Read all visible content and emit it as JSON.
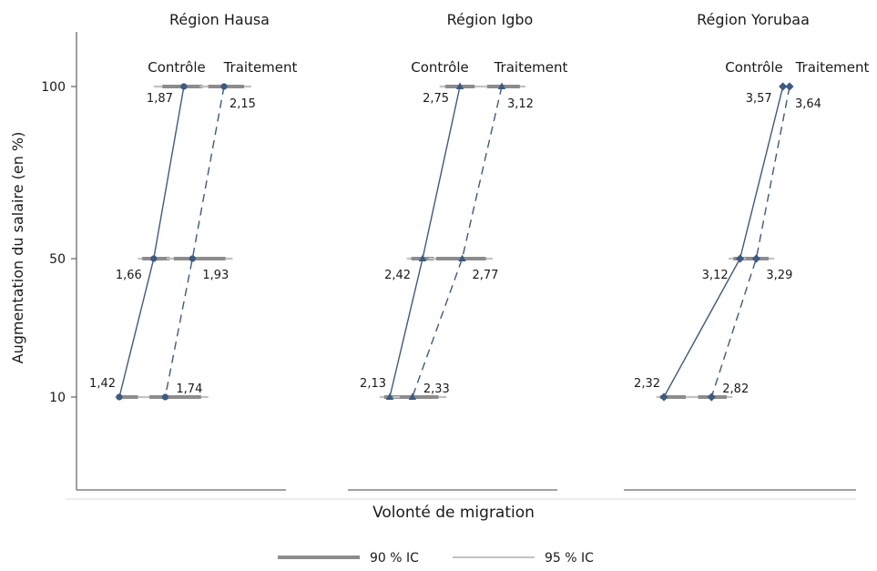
{
  "chart_data": {
    "type": "line",
    "ylabel": "Augmentation du salaire (en %)",
    "xlabel": "Volonté de migration",
    "y_ticks": [
      10,
      50,
      100
    ],
    "legend": {
      "placement": "bottom",
      "entries": [
        {
          "label": "90 % IC",
          "color": "#8c8c8c",
          "style": "thick"
        },
        {
          "label": "95 % IC",
          "color": "#c2c2c2",
          "style": "thin"
        }
      ]
    },
    "colors": {
      "series": "#3d5a80",
      "ci90": "#8c8c8c",
      "ci95": "#c2c2c2"
    },
    "panels": [
      {
        "title": "Région Hausa",
        "marker": "circle",
        "series": [
          {
            "name": "Contrôle",
            "line": "solid",
            "points": [
              {
                "y": 100,
                "x": 1.87,
                "label": "1,87",
                "ci90": [
                  1.72,
                  2.0
                ],
                "ci95": [
                  1.66,
                  2.06
                ]
              },
              {
                "y": 50,
                "x": 1.66,
                "label": "1,66",
                "ci90": [
                  1.58,
                  1.77
                ],
                "ci95": [
                  1.55,
                  1.82
                ]
              },
              {
                "y": 10,
                "x": 1.42,
                "label": "1,42",
                "ci90": [
                  1.42,
                  1.55
                ],
                "ci95": [
                  1.39,
                  1.6
                ]
              }
            ]
          },
          {
            "name": "Traitement",
            "line": "dashed",
            "points": [
              {
                "y": 100,
                "x": 2.15,
                "label": "2,15",
                "ci90": [
                  2.04,
                  2.29
                ],
                "ci95": [
                  1.98,
                  2.34
                ]
              },
              {
                "y": 50,
                "x": 1.93,
                "label": "1,93",
                "ci90": [
                  1.8,
                  2.16
                ],
                "ci95": [
                  1.75,
                  2.21
                ]
              },
              {
                "y": 10,
                "x": 1.74,
                "label": "1,74",
                "ci90": [
                  1.63,
                  1.99
                ],
                "ci95": [
                  1.6,
                  2.04
                ]
              }
            ]
          }
        ]
      },
      {
        "title": "Région Igbo",
        "marker": "triangle",
        "series": [
          {
            "name": "Contrôle",
            "line": "solid",
            "points": [
              {
                "y": 100,
                "x": 2.75,
                "label": "2,75",
                "ci90": [
                  2.62,
                  2.88
                ],
                "ci95": [
                  2.57,
                  2.93
                ]
              },
              {
                "y": 50,
                "x": 2.42,
                "label": "2,42",
                "ci90": [
                  2.32,
                  2.52
                ],
                "ci95": [
                  2.28,
                  2.58
                ]
              },
              {
                "y": 10,
                "x": 2.13,
                "label": "2,13",
                "ci90": [
                  2.08,
                  2.22
                ],
                "ci95": [
                  2.04,
                  2.27
                ]
              }
            ]
          },
          {
            "name": "Traitement",
            "line": "dashed",
            "points": [
              {
                "y": 100,
                "x": 3.12,
                "label": "3,12",
                "ci90": [
                  2.99,
                  3.28
                ],
                "ci95": [
                  2.93,
                  3.33
                ]
              },
              {
                "y": 50,
                "x": 2.77,
                "label": "2,77",
                "ci90": [
                  2.54,
                  2.98
                ],
                "ci95": [
                  2.47,
                  3.04
                ]
              },
              {
                "y": 10,
                "x": 2.33,
                "label": "2,33",
                "ci90": [
                  2.22,
                  2.56
                ],
                "ci95": [
                  2.16,
                  2.63
                ]
              }
            ]
          }
        ]
      },
      {
        "title": "Région Yorubaa",
        "marker": "diamond",
        "series": [
          {
            "name": "Contrôle",
            "line": "solid",
            "points": [
              {
                "y": 100,
                "x": 3.57,
                "label": "3,57",
                "ci90": [
                  3.57,
                  3.57
                ],
                "ci95": [
                  3.57,
                  3.57
                ]
              },
              {
                "y": 50,
                "x": 3.12,
                "label": "3,12",
                "ci90": [
                  3.05,
                  3.34
                ],
                "ci95": [
                  3.0,
                  3.4
                ]
              },
              {
                "y": 10,
                "x": 2.32,
                "label": "2,32",
                "ci90": [
                  2.28,
                  2.55
                ],
                "ci95": [
                  2.24,
                  2.62
                ]
              }
            ]
          },
          {
            "name": "Traitement",
            "line": "dashed",
            "points": [
              {
                "y": 100,
                "x": 3.64,
                "label": "3,64",
                "ci90": [
                  3.64,
                  3.64
                ],
                "ci95": [
                  3.64,
                  3.64
                ]
              },
              {
                "y": 50,
                "x": 3.29,
                "label": "3,29",
                "ci90": [
                  3.18,
                  3.42
                ],
                "ci95": [
                  3.12,
                  3.48
                ]
              },
              {
                "y": 10,
                "x": 2.82,
                "label": "2,82",
                "ci90": [
                  2.68,
                  2.98
                ],
                "ci95": [
                  2.62,
                  3.04
                ]
              }
            ]
          }
        ]
      }
    ]
  }
}
